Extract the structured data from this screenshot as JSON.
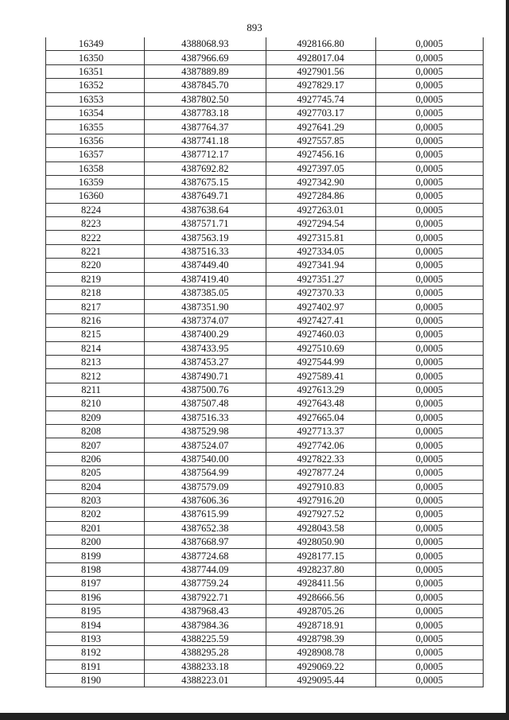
{
  "page_number": "893",
  "rows": [
    [
      "16349",
      "4388068.93",
      "4928166.80",
      "0,0005"
    ],
    [
      "16350",
      "4387966.69",
      "4928017.04",
      "0,0005"
    ],
    [
      "16351",
      "4387889.89",
      "4927901.56",
      "0,0005"
    ],
    [
      "16352",
      "4387845.70",
      "4927829.17",
      "0,0005"
    ],
    [
      "16353",
      "4387802.50",
      "4927745.74",
      "0,0005"
    ],
    [
      "16354",
      "4387783.18",
      "4927703.17",
      "0,0005"
    ],
    [
      "16355",
      "4387764.37",
      "4927641.29",
      "0,0005"
    ],
    [
      "16356",
      "4387741.18",
      "4927557.85",
      "0,0005"
    ],
    [
      "16357",
      "4387712.17",
      "4927456.16",
      "0,0005"
    ],
    [
      "16358",
      "4387692.82",
      "4927397.05",
      "0,0005"
    ],
    [
      "16359",
      "4387675.15",
      "4927342.90",
      "0,0005"
    ],
    [
      "16360",
      "4387649.71",
      "4927284.86",
      "0,0005"
    ],
    [
      "8224",
      "4387638.64",
      "4927263.01",
      "0,0005"
    ],
    [
      "8223",
      "4387571.71",
      "4927294.54",
      "0,0005"
    ],
    [
      "8222",
      "4387563.19",
      "4927315.81",
      "0,0005"
    ],
    [
      "8221",
      "4387516.33",
      "4927334.05",
      "0,0005"
    ],
    [
      "8220",
      "4387449.40",
      "4927341.94",
      "0,0005"
    ],
    [
      "8219",
      "4387419.40",
      "4927351.27",
      "0,0005"
    ],
    [
      "8218",
      "4387385.05",
      "4927370.33",
      "0,0005"
    ],
    [
      "8217",
      "4387351.90",
      "4927402.97",
      "0,0005"
    ],
    [
      "8216",
      "4387374.07",
      "4927427.41",
      "0,0005"
    ],
    [
      "8215",
      "4387400.29",
      "4927460.03",
      "0,0005"
    ],
    [
      "8214",
      "4387433.95",
      "4927510.69",
      "0,0005"
    ],
    [
      "8213",
      "4387453.27",
      "4927544.99",
      "0,0005"
    ],
    [
      "8212",
      "4387490.71",
      "4927589.41",
      "0,0005"
    ],
    [
      "8211",
      "4387500.76",
      "4927613.29",
      "0,0005"
    ],
    [
      "8210",
      "4387507.48",
      "4927643.48",
      "0,0005"
    ],
    [
      "8209",
      "4387516.33",
      "4927665.04",
      "0,0005"
    ],
    [
      "8208",
      "4387529.98",
      "4927713.37",
      "0,0005"
    ],
    [
      "8207",
      "4387524.07",
      "4927742.06",
      "0,0005"
    ],
    [
      "8206",
      "4387540.00",
      "4927822.33",
      "0,0005"
    ],
    [
      "8205",
      "4387564.99",
      "4927877.24",
      "0,0005"
    ],
    [
      "8204",
      "4387579.09",
      "4927910.83",
      "0,0005"
    ],
    [
      "8203",
      "4387606.36",
      "4927916.20",
      "0,0005"
    ],
    [
      "8202",
      "4387615.99",
      "4927927.52",
      "0,0005"
    ],
    [
      "8201",
      "4387652.38",
      "4928043.58",
      "0,0005"
    ],
    [
      "8200",
      "4387668.97",
      "4928050.90",
      "0,0005"
    ],
    [
      "8199",
      "4387724.68",
      "4928177.15",
      "0,0005"
    ],
    [
      "8198",
      "4387744.09",
      "4928237.80",
      "0,0005"
    ],
    [
      "8197",
      "4387759.24",
      "4928411.56",
      "0,0005"
    ],
    [
      "8196",
      "4387922.71",
      "4928666.56",
      "0,0005"
    ],
    [
      "8195",
      "4387968.43",
      "4928705.26",
      "0,0005"
    ],
    [
      "8194",
      "4387984.36",
      "4928718.91",
      "0,0005"
    ],
    [
      "8193",
      "4388225.59",
      "4928798.39",
      "0,0005"
    ],
    [
      "8192",
      "4388295.28",
      "4928908.78",
      "0,0005"
    ],
    [
      "8191",
      "4388233.18",
      "4929069.22",
      "0,0005"
    ],
    [
      "8190",
      "4388223.01",
      "4929095.44",
      "0,0005"
    ]
  ]
}
